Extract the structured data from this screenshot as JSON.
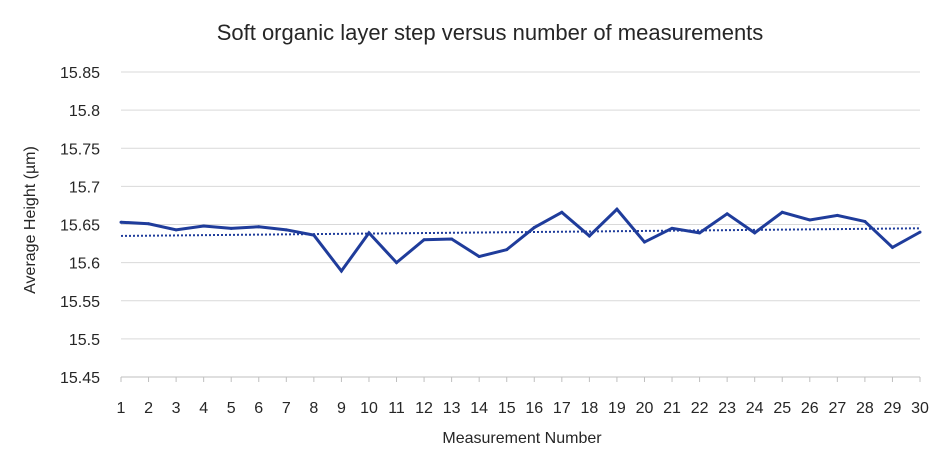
{
  "chart_data": {
    "type": "line",
    "title": "Soft organic layer step versus number of measurements",
    "xlabel": "Measurement Number",
    "ylabel": "Average Height (µm)",
    "ylim": [
      15.45,
      15.85
    ],
    "y_ticks": [
      "15.45",
      "15.5",
      "15.55",
      "15.6",
      "15.65",
      "15.7",
      "15.75",
      "15.8",
      "15.85"
    ],
    "categories": [
      "1",
      "2",
      "3",
      "4",
      "5",
      "6",
      "7",
      "8",
      "9",
      "10",
      "11",
      "12",
      "13",
      "14",
      "15",
      "16",
      "17",
      "18",
      "19",
      "20",
      "21",
      "22",
      "23",
      "24",
      "25",
      "26",
      "27",
      "28",
      "29",
      "30"
    ],
    "grid": true,
    "legend": "none",
    "series": [
      {
        "values": [
          15.653,
          15.651,
          15.643,
          15.648,
          15.645,
          15.647,
          15.643,
          15.636,
          15.589,
          15.639,
          15.6,
          15.63,
          15.631,
          15.608,
          15.617,
          15.646,
          15.666,
          15.635,
          15.67,
          15.627,
          15.645,
          15.639,
          15.664,
          15.639,
          15.666,
          15.656,
          15.662,
          15.654,
          15.62,
          15.64
        ],
        "color": "#1f3c9b",
        "style": "solid"
      }
    ],
    "trendline": {
      "type": "linear",
      "start": 15.635,
      "end": 15.645,
      "color": "#1f3c9b",
      "style": "dotted"
    }
  }
}
